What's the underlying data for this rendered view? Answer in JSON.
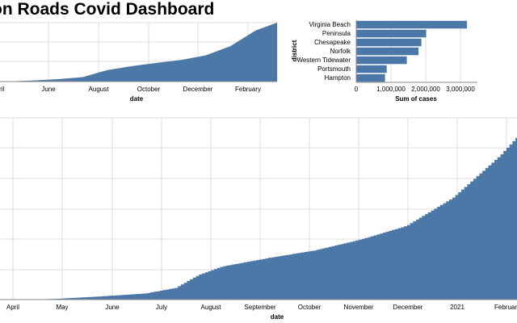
{
  "header": {
    "title": "on Roads Covid Dashboard"
  },
  "colors": {
    "bar": "#4c78a8",
    "grid": "#dddddd",
    "axis": "#888888"
  },
  "chart_data": [
    {
      "id": "overview",
      "type": "area",
      "xlabel": "date",
      "x_tick_labels": [
        "ril",
        "June",
        "August",
        "October",
        "December",
        "February"
      ],
      "x": [
        "2020-04",
        "2020-05",
        "2020-06",
        "2020-07",
        "2020-08",
        "2020-09",
        "2020-10",
        "2020-11",
        "2020-12",
        "2021-01",
        "2021-02",
        "2021-03"
      ],
      "values": [
        5000,
        25000,
        55000,
        100000,
        260000,
        350000,
        420000,
        490000,
        590000,
        800000,
        1150000,
        1330000
      ]
    },
    {
      "id": "by-district",
      "type": "bar",
      "orientation": "horizontal",
      "ylabel": "district",
      "xlabel": "Sum of cases",
      "categories": [
        "Virginia Beach",
        "Peninsula",
        "Chesapeake",
        "Norfolk",
        "Western Tidewater",
        "Portsmouth",
        "Hampton"
      ],
      "values": [
        3200000,
        2020000,
        1880000,
        1800000,
        1460000,
        880000,
        830000
      ],
      "xlim": [
        0,
        3500000
      ],
      "x_ticks": [
        "0",
        "1,000,000",
        "2,000,000",
        "3,000,000"
      ]
    },
    {
      "id": "detail",
      "type": "area",
      "xlabel": "date",
      "x_tick_labels": [
        "April",
        "May",
        "June",
        "July",
        "August",
        "September",
        "October",
        "November",
        "December",
        "2021",
        "Februar"
      ],
      "x": [
        "2020-03-28",
        "2020-04-20",
        "2020-05-20",
        "2020-06-20",
        "2020-07-10",
        "2020-07-25",
        "2020-08-10",
        "2020-09-10",
        "2020-10-10",
        "2020-11-10",
        "2020-12-10",
        "2021-01-10",
        "2021-02-10",
        "2021-02-22"
      ],
      "values": [
        0,
        5000,
        25000,
        50000,
        95000,
        200000,
        270000,
        340000,
        400000,
        490000,
        600000,
        830000,
        1170000,
        1330000
      ]
    }
  ]
}
